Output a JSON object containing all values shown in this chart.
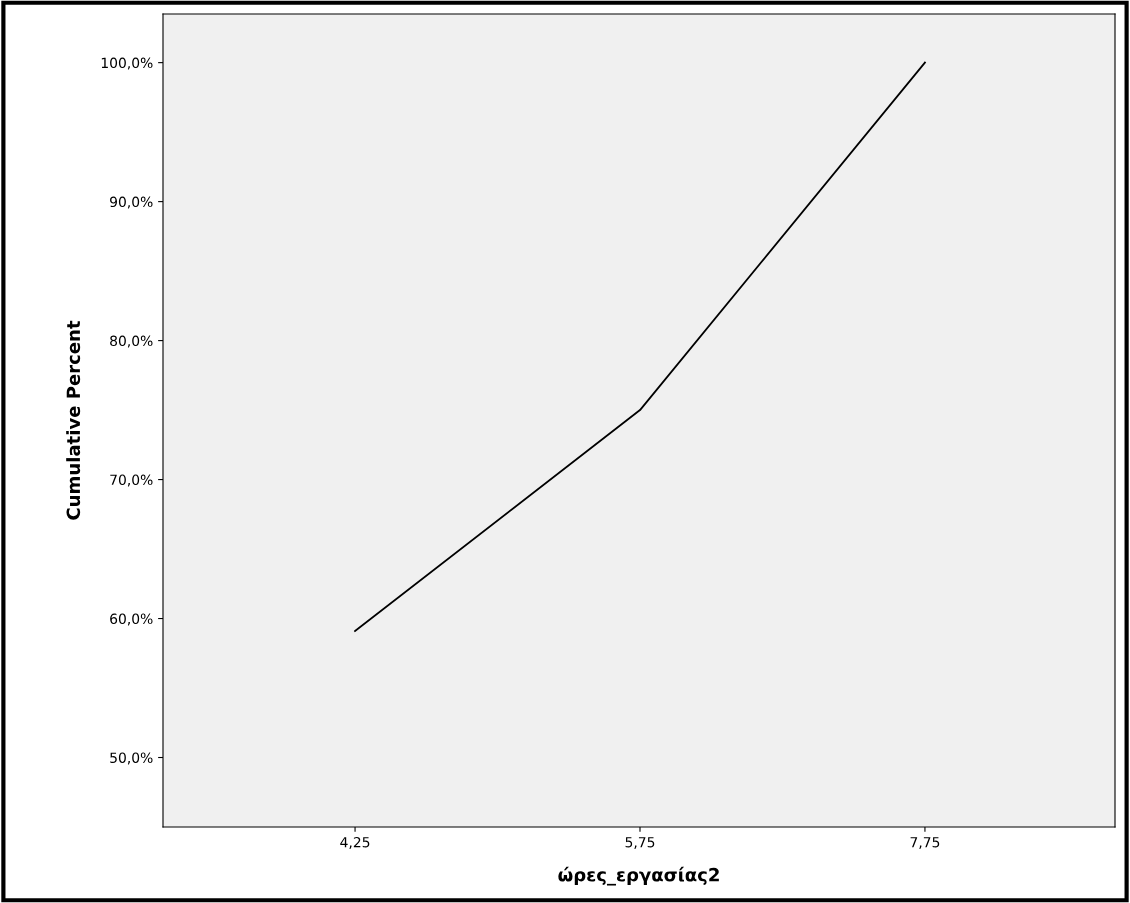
{
  "chart_data": {
    "type": "line",
    "xlabel": "ώρες_εργασίας2",
    "ylabel": "Cumulative Percent",
    "categories": [
      "4,25",
      "5,75",
      "7,75"
    ],
    "series": [
      {
        "color": "#000000",
        "values": [
          59.1,
          75.0,
          100.0
        ]
      }
    ],
    "ylim": [
      45,
      103.5
    ],
    "yticks": [
      {
        "value": 50,
        "label": "50,0%"
      },
      {
        "value": 60,
        "label": "60,0%"
      },
      {
        "value": 70,
        "label": "70,0%"
      },
      {
        "value": 80,
        "label": "80,0%"
      },
      {
        "value": 90,
        "label": "90,0%"
      },
      {
        "value": 100,
        "label": "100,0%"
      }
    ],
    "grid": false,
    "marker": "none",
    "line_style": "solid"
  }
}
